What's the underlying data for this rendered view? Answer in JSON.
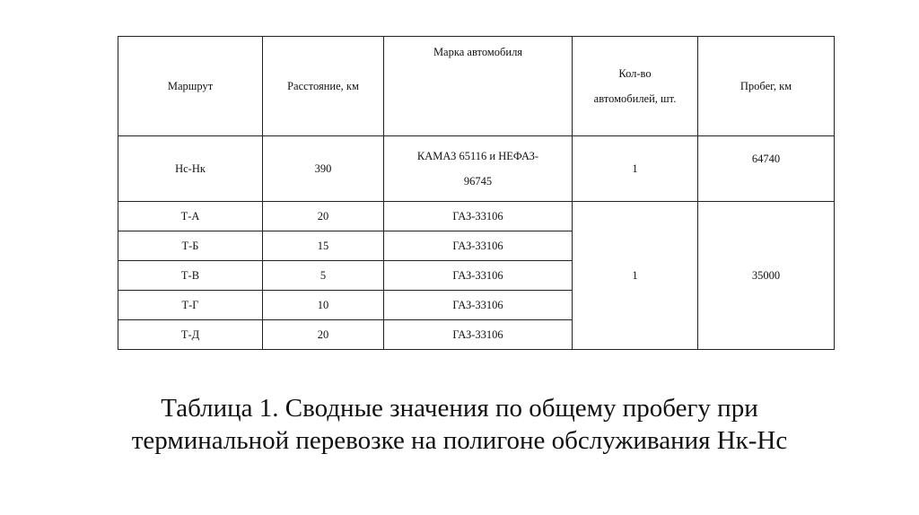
{
  "table": {
    "headers": [
      "Маршрут",
      "Расстояние, км",
      "Марка автомобиля",
      "Кол-во\nавтомобилей, шт.",
      "Пробег, км"
    ],
    "header_kolvo_line1": "Кол-во",
    "header_kolvo_line2": "автомобилей, шт.",
    "row1": {
      "route": "Нс-Нк",
      "distance": "390",
      "brand_line1": "КАМАЗ 65116 и НЕФАЗ-",
      "brand_line2": "96745",
      "count": "1",
      "mileage": "64740"
    },
    "rows": [
      {
        "route": "Т-А",
        "distance": "20",
        "brand": "ГАЗ-33106"
      },
      {
        "route": "Т-Б",
        "distance": "15",
        "brand": "ГАЗ-33106"
      },
      {
        "route": "Т-В",
        "distance": "5",
        "brand": "ГАЗ-33106"
      },
      {
        "route": "Т-Г",
        "distance": "10",
        "brand": "ГАЗ-33106"
      },
      {
        "route": "Т-Д",
        "distance": "20",
        "brand": "ГАЗ-33106"
      }
    ],
    "group_count": "1",
    "group_mileage": "35000"
  },
  "caption": {
    "line1": "Таблица 1. Сводные значения по общему пробегу при",
    "line2": "терминальной перевозке на полигоне обслуживания Нк-Нс"
  }
}
